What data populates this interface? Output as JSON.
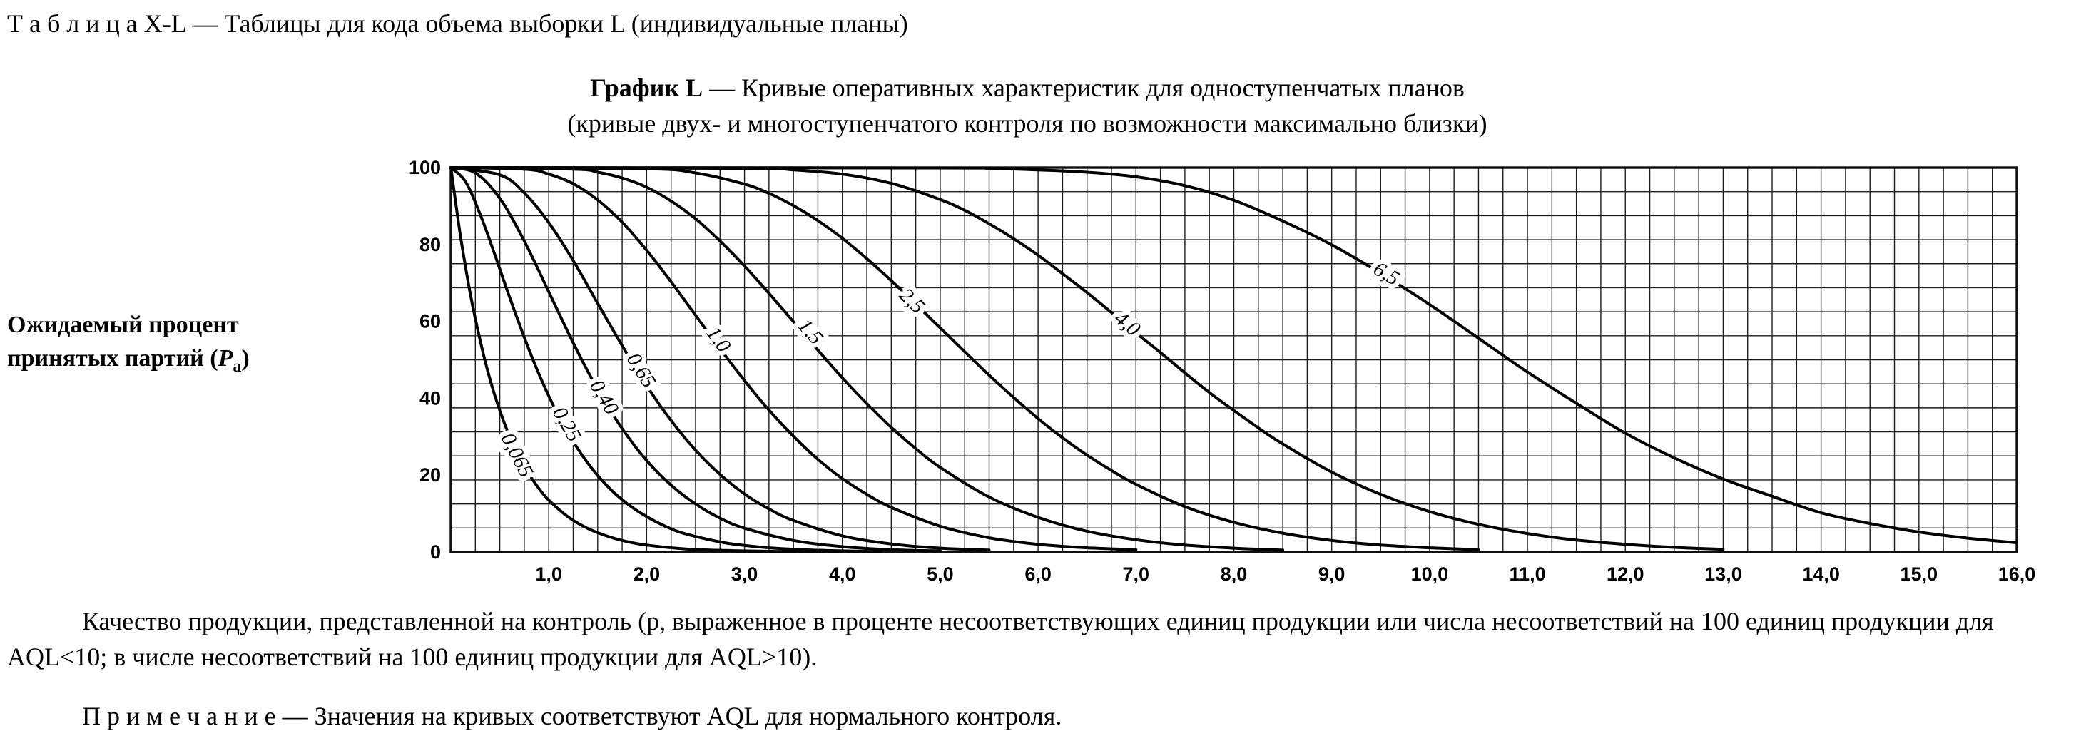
{
  "page": {
    "table_caption": "Т а б л и ц а   X-L — Таблицы для кода объема выборки L (индивидуальные планы)",
    "chart_title_bold": "График L",
    "chart_title_rest": " — Кривые оперативных характеристик для одноступенчатых планов",
    "chart_subtitle": "(кривые двух- и многоступенчатого контроля по возможности максимально близки)",
    "y_axis_label_line1": "Ожидаемый процент",
    "y_axis_label_line2_prefix": "принятых партий (",
    "y_axis_label_symbol": "P",
    "y_axis_label_subscript": "a",
    "y_axis_label_suffix": ")",
    "body_paragraph": "Качество продукции, представленной на контроль (р, выраженное в проценте несоответствующих единиц продукции или числа несоответствий на 100 единиц продукции для AQL<10; в числе несоответствий на 100 единиц продукции для AQL>10).",
    "note": "П р и м е ч а н и е — Значения на кривых соответствуют AQL для нормального контроля."
  },
  "chart_data": {
    "type": "line",
    "title": "График L — Кривые оперативных характеристик для одноступенчатых планов",
    "subtitle": "(кривые двух- и многоступенчатого контроля по возможности максимально близки)",
    "ylabel": "Ожидаемый процент принятых партий (Pa)",
    "xlabel": "",
    "xlim": [
      0,
      16
    ],
    "ylim": [
      0,
      100
    ],
    "grid": {
      "on": true,
      "x_step": 0.25,
      "y_rows": 16
    },
    "legend": "labels on curves; values are AQL for normal inspection",
    "x_tick_values": [
      1,
      2,
      3,
      4,
      5,
      6,
      7,
      8,
      9,
      10,
      11,
      12,
      13,
      14,
      15,
      16
    ],
    "x_tick_labels": [
      "1,0",
      "2,0",
      "3,0",
      "4,0",
      "5,0",
      "6,0",
      "7,0",
      "8,0",
      "9,0",
      "10,0",
      "11,0",
      "12,0",
      "13,0",
      "14,0",
      "15,0",
      "16,0"
    ],
    "y_tick_values": [
      0,
      20,
      40,
      60,
      80,
      100
    ],
    "y_tick_labels": [
      "0",
      "20",
      "40",
      "60",
      "80",
      "100"
    ],
    "series": [
      {
        "name": "0,065",
        "aql": 0.065,
        "label": {
          "x": 0.66,
          "y": 25,
          "angle": 63
        },
        "points": [
          [
            0,
            100
          ],
          [
            0.1,
            81.9
          ],
          [
            0.2,
            67
          ],
          [
            0.3,
            54.9
          ],
          [
            0.4,
            44.9
          ],
          [
            0.5,
            36.8
          ],
          [
            0.6,
            30.1
          ],
          [
            0.7,
            24.7
          ],
          [
            0.8,
            20.2
          ],
          [
            0.9,
            16.5
          ],
          [
            1,
            13.5
          ],
          [
            1.2,
            9.1
          ],
          [
            1.4,
            6.1
          ],
          [
            1.6,
            4.1
          ],
          [
            1.8,
            2.7
          ],
          [
            2,
            1.8
          ],
          [
            2.4,
            0.8
          ],
          [
            2.8,
            0.4
          ],
          [
            3.2,
            0.2
          ],
          [
            3.6,
            0.1
          ],
          [
            4,
            0
          ]
        ]
      },
      {
        "name": "0,25",
        "aql": 0.25,
        "label": {
          "x": 1.17,
          "y": 33,
          "angle": 60
        },
        "points": [
          [
            0,
            100
          ],
          [
            0.15,
            96.3
          ],
          [
            0.3,
            87.8
          ],
          [
            0.45,
            77.3
          ],
          [
            0.6,
            66.3
          ],
          [
            0.8,
            52.5
          ],
          [
            1,
            40.6
          ],
          [
            1.2,
            30.8
          ],
          [
            1.4,
            23.1
          ],
          [
            1.6,
            17.1
          ],
          [
            1.8,
            12.6
          ],
          [
            2,
            9.2
          ],
          [
            2.2,
            6.6
          ],
          [
            2.4,
            4.7
          ],
          [
            2.8,
            2.4
          ],
          [
            3.2,
            1.2
          ],
          [
            3.6,
            0.6
          ],
          [
            4,
            0.3
          ],
          [
            4.4,
            0.1
          ]
        ]
      },
      {
        "name": "0,40",
        "aql": 0.4,
        "label": {
          "x": 1.55,
          "y": 40,
          "angle": 59
        },
        "points": [
          [
            0,
            100
          ],
          [
            0.25,
            98.6
          ],
          [
            0.5,
            92
          ],
          [
            0.75,
            80.9
          ],
          [
            1,
            67.7
          ],
          [
            1.25,
            54.4
          ],
          [
            1.5,
            42.3
          ],
          [
            1.75,
            32.1
          ],
          [
            2,
            23.8
          ],
          [
            2.25,
            17.4
          ],
          [
            2.5,
            12.5
          ],
          [
            2.75,
            8.8
          ],
          [
            3,
            6.2
          ],
          [
            3.5,
            3
          ],
          [
            4,
            1.4
          ],
          [
            4.5,
            0.6
          ],
          [
            5,
            0.3
          ]
        ]
      },
      {
        "name": "0,65",
        "aql": 0.65,
        "label": {
          "x": 1.93,
          "y": 47,
          "angle": 58
        },
        "points": [
          [
            0,
            100
          ],
          [
            0.5,
            98.1
          ],
          [
            0.75,
            93.4
          ],
          [
            1,
            85.7
          ],
          [
            1.25,
            75.8
          ],
          [
            1.5,
            64.7
          ],
          [
            1.75,
            53.7
          ],
          [
            2,
            43.3
          ],
          [
            2.25,
            34.2
          ],
          [
            2.5,
            26.5
          ],
          [
            2.75,
            20.2
          ],
          [
            3,
            15.1
          ],
          [
            3.25,
            11.2
          ],
          [
            3.5,
            8.2
          ],
          [
            4,
            4.2
          ],
          [
            4.5,
            2.1
          ],
          [
            5,
            1
          ],
          [
            5.5,
            0.5
          ]
        ]
      },
      {
        "name": "1,0",
        "aql": 1.0,
        "label": {
          "x": 2.72,
          "y": 55,
          "angle": 54
        },
        "points": [
          [
            0,
            100
          ],
          [
            0.75,
            99.6
          ],
          [
            1,
            98.3
          ],
          [
            1.25,
            95.8
          ],
          [
            1.5,
            91.6
          ],
          [
            1.75,
            85.8
          ],
          [
            2,
            78.5
          ],
          [
            2.25,
            70.3
          ],
          [
            2.5,
            61.6
          ],
          [
            2.75,
            52.9
          ],
          [
            3,
            44.6
          ],
          [
            3.25,
            36.9
          ],
          [
            3.5,
            30.1
          ],
          [
            3.75,
            24.1
          ],
          [
            4,
            19.1
          ],
          [
            4.25,
            15
          ],
          [
            4.5,
            11.6
          ],
          [
            5,
            6.7
          ],
          [
            5.5,
            3.7
          ],
          [
            6,
            2
          ],
          [
            6.5,
            1.1
          ],
          [
            7,
            0.6
          ]
        ]
      },
      {
        "name": "1,5",
        "aql": 1.5,
        "label": {
          "x": 3.66,
          "y": 57,
          "angle": 49
        },
        "points": [
          [
            0,
            100
          ],
          [
            1.25,
            99.6
          ],
          [
            1.5,
            98.8
          ],
          [
            1.75,
            97.3
          ],
          [
            2,
            94.9
          ],
          [
            2.25,
            91.3
          ],
          [
            2.5,
            86.7
          ],
          [
            2.75,
            80.9
          ],
          [
            3,
            74.4
          ],
          [
            3.25,
            67.3
          ],
          [
            3.5,
            59.9
          ],
          [
            3.75,
            52.5
          ],
          [
            4,
            45.3
          ],
          [
            4.25,
            38.6
          ],
          [
            4.5,
            32.4
          ],
          [
            4.75,
            26.9
          ],
          [
            5,
            22
          ],
          [
            5.5,
            14.3
          ],
          [
            6,
            9
          ],
          [
            6.5,
            5.4
          ],
          [
            7,
            3.2
          ],
          [
            7.5,
            1.8
          ],
          [
            8,
            1
          ],
          [
            8.5,
            0.5
          ]
        ]
      },
      {
        "name": "2,5",
        "aql": 2.5,
        "label": {
          "x": 4.7,
          "y": 65,
          "angle": 44
        },
        "points": [
          [
            0,
            100
          ],
          [
            2,
            99.7
          ],
          [
            2.5,
            98.6
          ],
          [
            3,
            95.7
          ],
          [
            3.25,
            93.3
          ],
          [
            3.5,
            90.1
          ],
          [
            3.75,
            86.2
          ],
          [
            4,
            81.6
          ],
          [
            4.25,
            76.3
          ],
          [
            4.5,
            70.6
          ],
          [
            4.75,
            64.5
          ],
          [
            5,
            58.3
          ],
          [
            5.25,
            52.1
          ],
          [
            5.5,
            46
          ],
          [
            5.75,
            40.2
          ],
          [
            6,
            34.7
          ],
          [
            6.25,
            29.7
          ],
          [
            6.5,
            25.2
          ],
          [
            6.75,
            21.2
          ],
          [
            7,
            17.6
          ],
          [
            7.5,
            11.8
          ],
          [
            8,
            7.7
          ],
          [
            8.5,
            4.9
          ],
          [
            9,
            3
          ],
          [
            9.5,
            1.8
          ],
          [
            10,
            1.1
          ],
          [
            10.5,
            0.6
          ]
        ]
      },
      {
        "name": "4,0",
        "aql": 4.0,
        "label": {
          "x": 6.9,
          "y": 59,
          "angle": 40
        },
        "points": [
          [
            0,
            100
          ],
          [
            3,
            99.8
          ],
          [
            3.5,
            99.4
          ],
          [
            4,
            98.3
          ],
          [
            4.5,
            95.9
          ],
          [
            5,
            91.7
          ],
          [
            5.25,
            88.9
          ],
          [
            5.5,
            85.4
          ],
          [
            5.75,
            81.5
          ],
          [
            6,
            77.2
          ],
          [
            6.25,
            72.4
          ],
          [
            6.5,
            67.5
          ],
          [
            6.75,
            62.3
          ],
          [
            7,
            57
          ],
          [
            7.25,
            51.9
          ],
          [
            7.5,
            46.6
          ],
          [
            7.75,
            41.5
          ],
          [
            8,
            36.8
          ],
          [
            8.25,
            32.3
          ],
          [
            8.5,
            28.1
          ],
          [
            9,
            20.8
          ],
          [
            9.5,
            15
          ],
          [
            10,
            10.5
          ],
          [
            10.5,
            7.2
          ],
          [
            11,
            4.8
          ],
          [
            11.5,
            3.1
          ],
          [
            12,
            2
          ],
          [
            12.5,
            1.2
          ],
          [
            13,
            0.7
          ]
        ]
      },
      {
        "name": "6,5",
        "aql": 6.5,
        "label": {
          "x": 9.55,
          "y": 72,
          "angle": 31
        },
        "points": [
          [
            0,
            100
          ],
          [
            5,
            99.9
          ],
          [
            5.5,
            99.8
          ],
          [
            6,
            99.4
          ],
          [
            6.5,
            98.8
          ],
          [
            7,
            97.6
          ],
          [
            7.5,
            95.3
          ],
          [
            8,
            91.5
          ],
          [
            8.5,
            86.1
          ],
          [
            9,
            79.9
          ],
          [
            9.5,
            72.5
          ],
          [
            10,
            64.4
          ],
          [
            10.5,
            55.6
          ],
          [
            11,
            46.8
          ],
          [
            11.5,
            38.7
          ],
          [
            12,
            30.9
          ],
          [
            12.5,
            24.5
          ],
          [
            13,
            19
          ],
          [
            13.5,
            14.5
          ],
          [
            14,
            10.2
          ],
          [
            14.5,
            7.4
          ],
          [
            15,
            5.2
          ],
          [
            15.5,
            3.6
          ],
          [
            16,
            2.4
          ]
        ]
      }
    ]
  }
}
